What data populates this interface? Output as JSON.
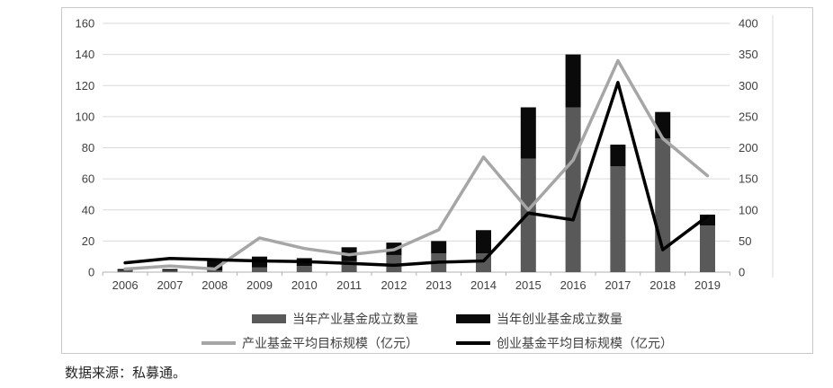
{
  "source_note": "数据来源：私募通。",
  "colors": {
    "industry_bar": "#595959",
    "venture_bar": "#0a0a0a",
    "industry_line": "#a6a6a6",
    "venture_line": "#000000",
    "gridline": "#d9d9d9",
    "axis_line": "#b0b0b0",
    "tick_text": "#3f3f3f"
  },
  "chart_data": {
    "type": "bar+line combo (stacked bars on left axis, lines on right axis)",
    "categories": [
      "2006",
      "2007",
      "2008",
      "2009",
      "2010",
      "2011",
      "2012",
      "2013",
      "2014",
      "2015",
      "2016",
      "2017",
      "2018",
      "2019"
    ],
    "left_axis": {
      "min": 0,
      "max": 160,
      "step": 20,
      "tick_labels": [
        "0",
        "20",
        "40",
        "60",
        "80",
        "100",
        "120",
        "140",
        "160"
      ]
    },
    "right_axis": {
      "min": 0,
      "max": 400,
      "step": 50,
      "tick_labels": [
        "0",
        "50",
        "100",
        "150",
        "200",
        "250",
        "300",
        "350",
        "400"
      ]
    },
    "grid": true,
    "legend_position": "bottom",
    "series": [
      {
        "name": "当年产业基金成立数量",
        "type": "bar",
        "stack": "counts",
        "axis": "left",
        "color": "#595959",
        "values": [
          1,
          1,
          1,
          3,
          4,
          7,
          11,
          12,
          12,
          73,
          106,
          68,
          86,
          30
        ]
      },
      {
        "name": "当年创业基金成立数量",
        "type": "bar",
        "stack": "counts",
        "axis": "left",
        "color": "#0a0a0a",
        "values": [
          1,
          1,
          7,
          7,
          5,
          9,
          8,
          8,
          15,
          33,
          34,
          14,
          17,
          7
        ]
      },
      {
        "name": "产业基金平均目标规模（亿元）",
        "type": "line",
        "axis": "right",
        "color": "#a6a6a6",
        "values": [
          5,
          10,
          5,
          55,
          38,
          28,
          36,
          68,
          185,
          100,
          180,
          340,
          215,
          155
        ]
      },
      {
        "name": "创业基金平均目标规模（亿元）",
        "type": "line",
        "axis": "right",
        "color": "#000000",
        "values": [
          15,
          22,
          20,
          18,
          17,
          14,
          11,
          16,
          18,
          95,
          84,
          305,
          36,
          90
        ]
      }
    ]
  }
}
